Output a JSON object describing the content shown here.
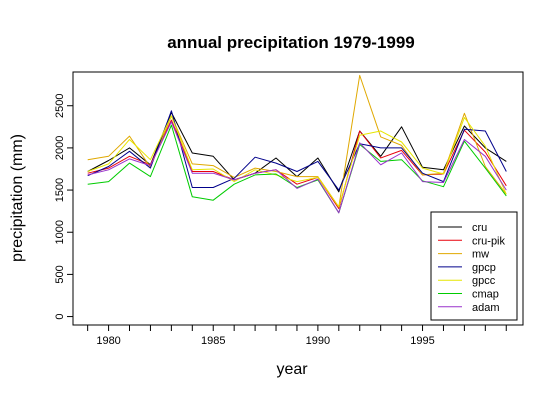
{
  "chart_data": {
    "type": "line",
    "title": "annual precipitation 1979-1999",
    "xlabel": "year",
    "ylabel": "precipitation (mm)",
    "x": [
      1979,
      1980,
      1981,
      1982,
      1983,
      1984,
      1985,
      1986,
      1987,
      1988,
      1989,
      1990,
      1991,
      1992,
      1993,
      1994,
      1995,
      1996,
      1997,
      1998,
      1999
    ],
    "xlim": [
      1978.3,
      1999.8
    ],
    "ylim": [
      -100,
      2900
    ],
    "xticks": [
      1980,
      1985,
      1990,
      1995
    ],
    "yticks": [
      0,
      500,
      1000,
      1500,
      2000,
      2500
    ],
    "grid": false,
    "legend_position": "bottom-right",
    "series": [
      {
        "name": "cru",
        "color": "#000000",
        "values": [
          1720,
          1850,
          2000,
          1800,
          2420,
          1940,
          1900,
          1620,
          1700,
          1880,
          1660,
          1880,
          1480,
          2200,
          1900,
          2250,
          1770,
          1740,
          2260,
          2000,
          1840
        ]
      },
      {
        "name": "cru-pik",
        "color": "#e8000b",
        "values": [
          1700,
          1760,
          1900,
          1800,
          2330,
          1720,
          1720,
          1620,
          1700,
          1740,
          1570,
          1650,
          1280,
          2200,
          1880,
          1970,
          1680,
          1690,
          2210,
          1950,
          1550
        ]
      },
      {
        "name": "mw",
        "color": "#e0a800",
        "values": [
          1860,
          1900,
          2140,
          1770,
          2380,
          1810,
          1790,
          1650,
          1760,
          1720,
          1660,
          1660,
          1300,
          2860,
          2130,
          2030,
          1680,
          1700,
          2410,
          1780,
          1450
        ]
      },
      {
        "name": "gpcp",
        "color": "#00008b",
        "values": [
          1670,
          1780,
          1960,
          1760,
          2440,
          1530,
          1530,
          1640,
          1890,
          1820,
          1720,
          1840,
          1500,
          2050,
          2000,
          2000,
          1700,
          1600,
          2220,
          2200,
          1720
        ]
      },
      {
        "name": "gpcc",
        "color": "#e6e600",
        "values": [
          1720,
          1810,
          2100,
          1860,
          2380,
          1740,
          1750,
          1600,
          1740,
          1680,
          1600,
          1650,
          1300,
          2150,
          2200,
          2070,
          1760,
          1690,
          2360,
          2020,
          1450
        ]
      },
      {
        "name": "cmap",
        "color": "#00cc00",
        "values": [
          1570,
          1600,
          1820,
          1660,
          2270,
          1420,
          1380,
          1570,
          1680,
          1690,
          1530,
          1620,
          1230,
          2040,
          1840,
          1860,
          1610,
          1540,
          2080,
          1760,
          1430
        ]
      },
      {
        "name": "adam",
        "color": "#9932cc",
        "values": [
          1680,
          1740,
          1870,
          1790,
          2310,
          1700,
          1700,
          1620,
          1700,
          1740,
          1520,
          1630,
          1230,
          2060,
          1800,
          1940,
          1600,
          1590,
          2100,
          1900,
          1500
        ]
      }
    ]
  }
}
